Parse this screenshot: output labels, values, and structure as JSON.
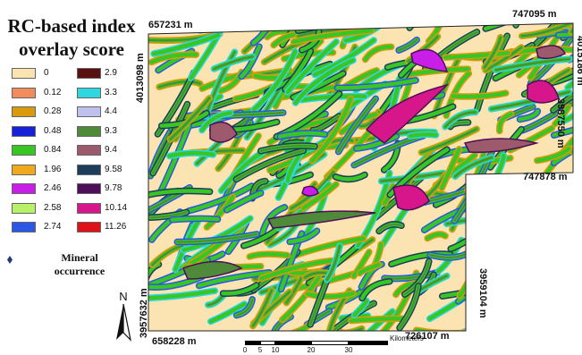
{
  "legend": {
    "title_line1": "RC-based index",
    "title_line2": "overlay score",
    "items": [
      {
        "label": "0",
        "color": "#fce4b2"
      },
      {
        "label": "0.12",
        "color": "#f28c5c"
      },
      {
        "label": "0.28",
        "color": "#d99a0e"
      },
      {
        "label": "0.48",
        "color": "#1520d8"
      },
      {
        "label": "0.84",
        "color": "#38c624"
      },
      {
        "label": "1.96",
        "color": "#f0a81c"
      },
      {
        "label": "2.46",
        "color": "#c81ee8"
      },
      {
        "label": "2.58",
        "color": "#b8f06a"
      },
      {
        "label": "2.74",
        "color": "#2b57e4"
      },
      {
        "label": "2.9",
        "color": "#5a1010"
      },
      {
        "label": "3.3",
        "color": "#2ed6e0"
      },
      {
        "label": "4.4",
        "color": "#c0c0ee"
      },
      {
        "label": "9.3",
        "color": "#4e8a3a"
      },
      {
        "label": "9.4",
        "color": "#9c5a6c"
      },
      {
        "label": "9.58",
        "color": "#1e3c5c"
      },
      {
        "label": "9.78",
        "color": "#4e0e58"
      },
      {
        "label": "10.14",
        "color": "#d6168a"
      },
      {
        "label": "11.26",
        "color": "#e01018"
      }
    ]
  },
  "mineral": {
    "label_line1": "Mineral",
    "label_line2": "occurrence",
    "icon": "diamond-marker",
    "color": "#1e3c78"
  },
  "north_arrow": {
    "label": "N"
  },
  "coordinates": {
    "top_left": "657231 m",
    "top_right": "747095 m",
    "left_upper": "4013098 m",
    "right_upper": "4015186 m",
    "right_middle": "3987550 m",
    "notch_corner": "747878 m",
    "left_lower": "3957632 m",
    "right_lower": "3959104 m",
    "bottom_left": "658228 m",
    "bottom_right": "726107 m"
  },
  "scalebar": {
    "unit": "Kilometers",
    "ticks": [
      "0",
      "5",
      "10",
      "20",
      "30"
    ]
  }
}
